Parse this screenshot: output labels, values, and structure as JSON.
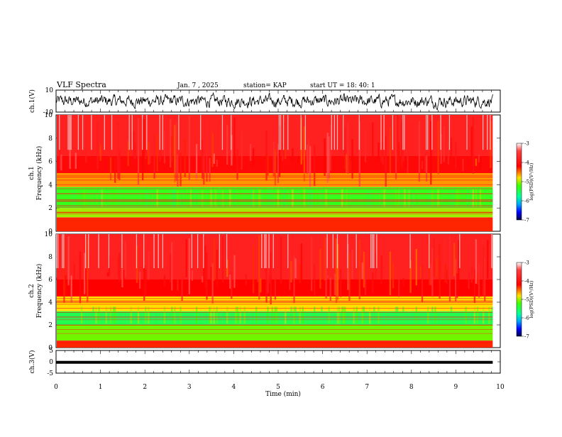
{
  "header": {
    "title": "VLF Spectra",
    "date": "Jan. 7 , 2025",
    "station": "station= KAP",
    "start": "start  UT =   18: 40: 1"
  },
  "chart_data": {
    "type": "heatmap",
    "x_axis": {
      "label": "Time (min)",
      "range": [
        0,
        10
      ],
      "ticks": [
        "0",
        "1",
        "2",
        "3",
        "4",
        "5",
        "6",
        "7",
        "8",
        "9",
        "10"
      ],
      "data_end": 9.83
    },
    "panels": [
      {
        "id": "ch1-waveform",
        "type": "line",
        "ylabel": "ch.1(V)",
        "ylim": [
          -10,
          10
        ],
        "yticks": [
          "10",
          "-10"
        ],
        "approx_level": 0,
        "approx_amplitude": 4
      },
      {
        "id": "ch1-spectrogram",
        "type": "heatmap",
        "ylabel_top": "ch.1",
        "ylabel": "Frequency (kHz)",
        "ylim": [
          0,
          10
        ],
        "yticks": [
          "0",
          "2",
          "4",
          "6",
          "8",
          "10"
        ],
        "bands_khz": [
          {
            "from": 0,
            "to": 1.2,
            "level": -4.3
          },
          {
            "from": 1.2,
            "to": 2.0,
            "level": -5.0
          },
          {
            "from": 2.0,
            "to": 3.8,
            "level": -5.3
          },
          {
            "from": 3.8,
            "to": 5.0,
            "level": -4.6
          },
          {
            "from": 5.0,
            "to": 6.5,
            "level": -4.1
          },
          {
            "from": 6.5,
            "to": 10,
            "level": -3.8
          }
        ]
      },
      {
        "id": "ch2-spectrogram",
        "type": "heatmap",
        "ylabel_top": "ch.2",
        "ylabel": "Frequency (kHz)",
        "ylim": [
          0,
          10
        ],
        "yticks": [
          "0",
          "2",
          "4",
          "6",
          "8",
          "10"
        ],
        "bands_khz": [
          {
            "from": 0,
            "to": 0.6,
            "level": -4.3
          },
          {
            "from": 0.6,
            "to": 2.0,
            "level": -5.1
          },
          {
            "from": 2.0,
            "to": 3.2,
            "level": -5.5
          },
          {
            "from": 3.2,
            "to": 4.5,
            "level": -4.8
          },
          {
            "from": 4.5,
            "to": 6.0,
            "level": -4.2
          },
          {
            "from": 6.0,
            "to": 10,
            "level": -3.8
          }
        ]
      },
      {
        "id": "ch3-waveform",
        "type": "line",
        "ylabel": "ch.3(V)",
        "ylim": [
          -5,
          5
        ],
        "yticks": [
          "5",
          "0",
          "-5"
        ],
        "approx_level": 0,
        "approx_amplitude": 0.4
      }
    ],
    "colorbars": [
      {
        "label": "log(PSD)(V²/Hz)",
        "range": [
          -7,
          -3
        ],
        "ticks": [
          "-3",
          "-4",
          "-5",
          "-6",
          "-7"
        ]
      },
      {
        "label": "log(PSD)(V²/Hz)",
        "range": [
          -7,
          -3
        ],
        "ticks": [
          "-3",
          "-4",
          "-5",
          "-6",
          "-7"
        ]
      }
    ],
    "colors": {
      "high": "#ff2020",
      "mid": "#ffd400",
      "low": "#00ff40",
      "lower": "#00c8ff",
      "min": "#000066"
    }
  }
}
